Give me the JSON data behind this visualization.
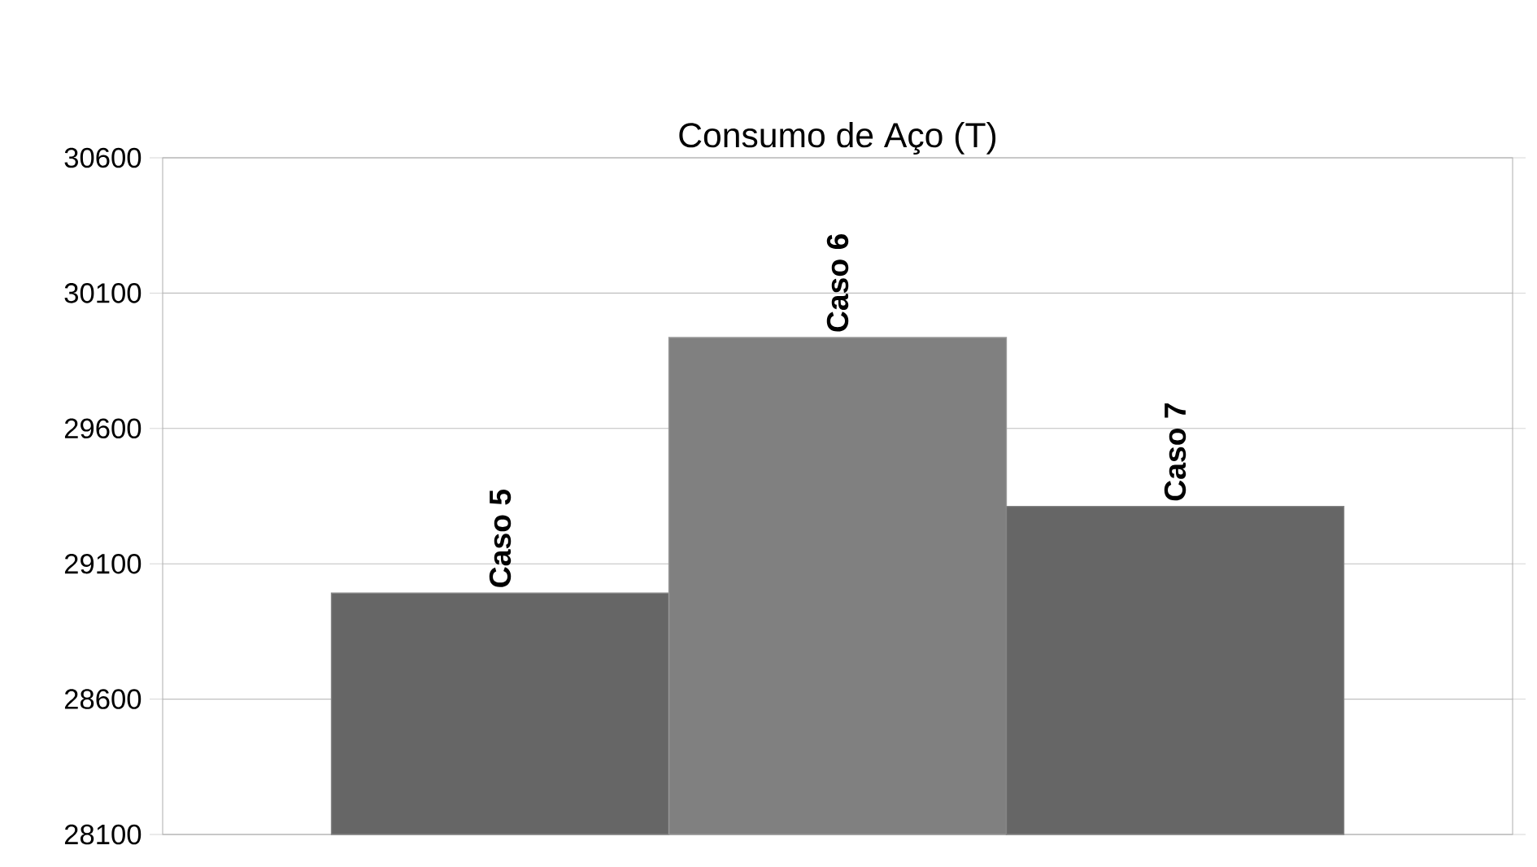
{
  "chart_data": {
    "type": "bar",
    "title": "Consumo de Aço (T)",
    "categories": [
      "Caso 5",
      "Caso 6",
      "Caso 7"
    ],
    "values": [
      28992,
      29936,
      29312
    ],
    "colors": [
      "#666666",
      "#808080",
      "#666666"
    ],
    "ylim": [
      28100,
      30600
    ],
    "yticks": [
      28100,
      28600,
      29100,
      29600,
      30100,
      30600
    ],
    "grid": "y"
  }
}
